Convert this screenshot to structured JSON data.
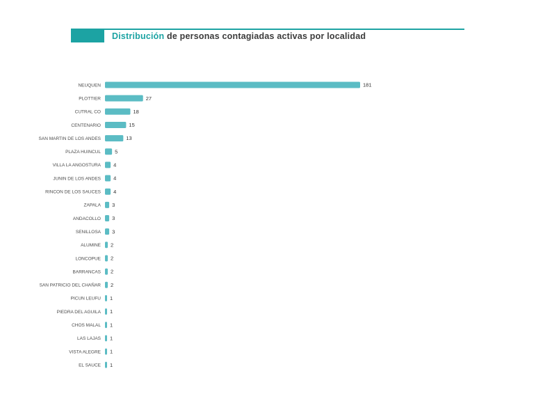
{
  "header": {
    "title_accent": "Distribución",
    "title_rest": " de personas contagiadas activas por localidad",
    "accent_color": "#1ca3a3"
  },
  "chart_data": {
    "type": "bar",
    "orientation": "horizontal",
    "title": "Distribución de personas contagiadas activas por localidad",
    "xlabel": "",
    "ylabel": "",
    "bar_color": "#5bbcc4",
    "grid": false,
    "legend": "none",
    "xlim": [
      0,
      181
    ],
    "categories": [
      "NEUQUEN",
      "PLOTTIER",
      "CUTRAL CO",
      "CENTENARIO",
      "SAN MARTIN DE LOS ANDES",
      "PLAZA HUINCUL",
      "VILLA LA ANGOSTURA",
      "JUNIN DE LOS ANDES",
      "RINCON DE LOS SAUCES",
      "ZAPALA",
      "ANDACOLLO",
      "SENILLOSA",
      "ALUMINE",
      "LONCOPUE",
      "BARRANCAS",
      "SAN PATRICIO DEL CHAÑAR",
      "PICUN LEUFU",
      "PIEDRA DEL AGUILA",
      "CHOS MALAL",
      "LAS LAJAS",
      "VISTA ALEGRE",
      "EL SAUCE"
    ],
    "values": [
      181,
      27,
      18,
      15,
      13,
      5,
      4,
      4,
      4,
      3,
      3,
      3,
      2,
      2,
      2,
      2,
      1,
      1,
      1,
      1,
      1,
      1
    ]
  }
}
